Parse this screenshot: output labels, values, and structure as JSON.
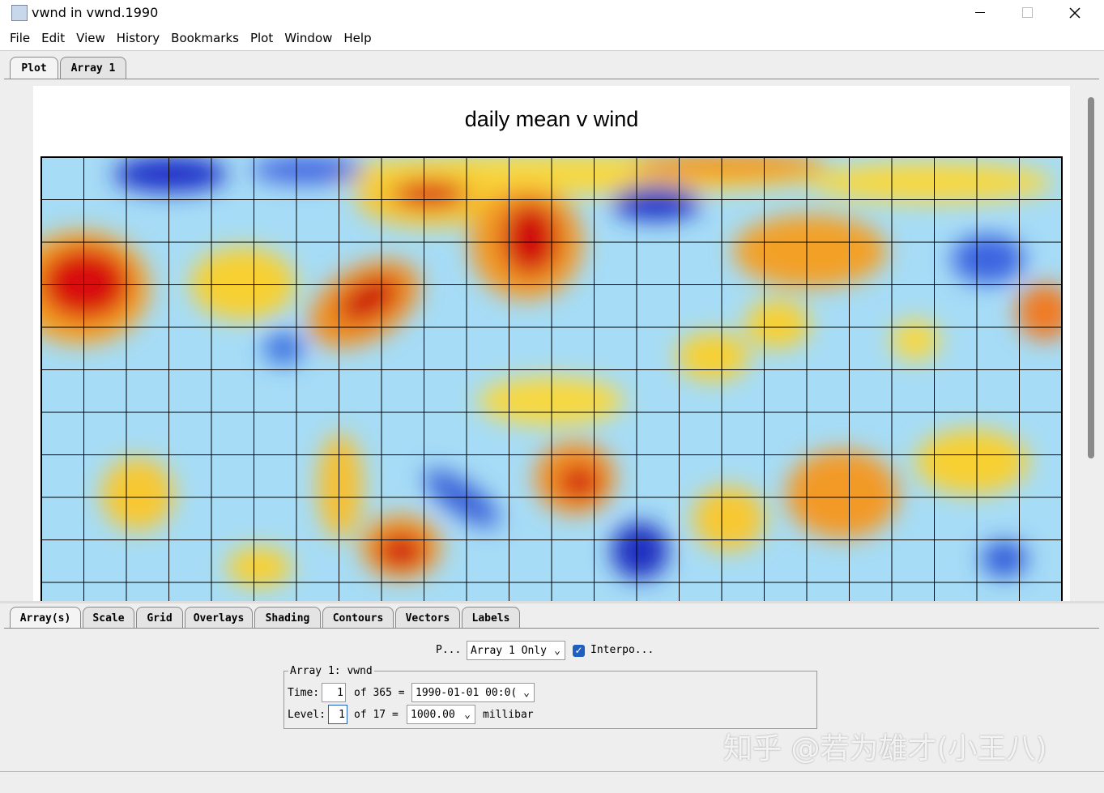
{
  "window": {
    "title": "vwnd in vwnd.1990",
    "menu": [
      "File",
      "Edit",
      "View",
      "History",
      "Bookmarks",
      "Plot",
      "Window",
      "Help"
    ]
  },
  "tabs": [
    "Plot",
    "Array 1"
  ],
  "plot": {
    "title": "daily mean v wind"
  },
  "panel_tabs": [
    "Array(s)",
    "Scale",
    "Grid",
    "Overlays",
    "Shading",
    "Contours",
    "Vectors",
    "Labels"
  ],
  "controls": {
    "plot_label": "P...",
    "plot_select": "Array 1 Only",
    "interpolate": "Interpo...",
    "group_title": "Array 1: vwnd",
    "time_label": "Time:",
    "time_index": "1",
    "time_of": "of 365 =",
    "time_value": "1990-01-01 00:0(",
    "level_label": "Level:",
    "level_index": "1",
    "level_of": "of 17 =",
    "level_value": "1000.00",
    "level_unit": "millibar"
  },
  "watermark": "知乎 @若为雄才(小王八)"
}
